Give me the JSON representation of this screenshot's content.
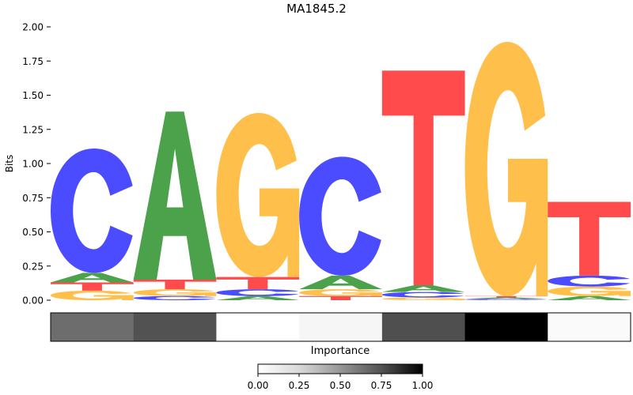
{
  "chart_data": {
    "type": "sequence-logo",
    "title": "MA1845.2",
    "ylabel": "Bits",
    "ylim": [
      0,
      2.0
    ],
    "yticks": [
      "0.00",
      "0.25",
      "0.50",
      "0.75",
      "1.00",
      "1.25",
      "1.50",
      "1.75",
      "2.00"
    ],
    "letter_colors": {
      "A": "#4ba24b",
      "C": "#4b4bff",
      "G": "#ffbf4b",
      "T": "#ff4b4b"
    },
    "positions": [
      {
        "stack": [
          {
            "letter": "G",
            "bits": 0.07
          },
          {
            "letter": "T",
            "bits": 0.06
          },
          {
            "letter": "A",
            "bits": 0.07
          },
          {
            "letter": "C",
            "bits": 0.91
          }
        ]
      },
      {
        "stack": [
          {
            "letter": "C",
            "bits": 0.03
          },
          {
            "letter": "G",
            "bits": 0.05
          },
          {
            "letter": "T",
            "bits": 0.07
          },
          {
            "letter": "A",
            "bits": 1.23
          }
        ]
      },
      {
        "stack": [
          {
            "letter": "A",
            "bits": 0.03
          },
          {
            "letter": "C",
            "bits": 0.05
          },
          {
            "letter": "T",
            "bits": 0.09
          },
          {
            "letter": "G",
            "bits": 1.2
          }
        ]
      },
      {
        "stack": [
          {
            "letter": "T",
            "bits": 0.03
          },
          {
            "letter": "G",
            "bits": 0.05
          },
          {
            "letter": "A",
            "bits": 0.1
          },
          {
            "letter": "C",
            "bits": 0.87
          }
        ]
      },
      {
        "stack": [
          {
            "letter": "G",
            "bits": 0.02
          },
          {
            "letter": "C",
            "bits": 0.04
          },
          {
            "letter": "A",
            "bits": 0.05
          },
          {
            "letter": "T",
            "bits": 1.57
          }
        ]
      },
      {
        "stack": [
          {
            "letter": "C",
            "bits": 0.01
          },
          {
            "letter": "A",
            "bits": 0.01
          },
          {
            "letter": "T",
            "bits": 0.01
          },
          {
            "letter": "G",
            "bits": 1.86
          }
        ]
      },
      {
        "stack": [
          {
            "letter": "A",
            "bits": 0.03
          },
          {
            "letter": "G",
            "bits": 0.07
          },
          {
            "letter": "C",
            "bits": 0.08
          },
          {
            "letter": "T",
            "bits": 0.54
          }
        ]
      }
    ],
    "importance": [
      0.65,
      0.75,
      0.0,
      0.06,
      0.76,
      1.0,
      0.03
    ],
    "importance_label": "Importance",
    "colorbar": {
      "range": [
        0,
        1
      ],
      "ticks": [
        "0.00",
        "0.25",
        "0.50",
        "0.75",
        "1.00"
      ],
      "colormap": "Greys"
    }
  }
}
